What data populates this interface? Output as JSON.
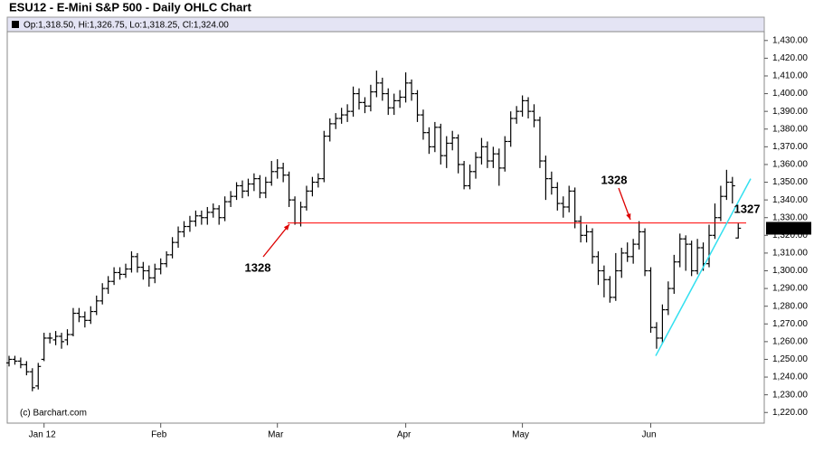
{
  "chart_data": {
    "type": "ohlc",
    "title": "ESU12 - E-Mini S&P 500 - Daily OHLC Chart",
    "info": "Op:1,318.50, Hi:1,326.75, Lo:1,318.25, Cl:1,324.00",
    "credit": "(c) Barchart.com",
    "color": "#000000",
    "categories": [
      null,
      null,
      null,
      null,
      null,
      null,
      "Jan 12",
      null,
      null,
      null,
      null,
      null,
      null,
      null,
      null,
      null,
      null,
      null,
      null,
      null,
      null,
      null,
      null,
      null,
      null,
      null,
      "Feb",
      null,
      null,
      null,
      null,
      null,
      null,
      null,
      null,
      null,
      null,
      null,
      null,
      null,
      null,
      null,
      null,
      null,
      null,
      null,
      "Mar",
      null,
      null,
      null,
      null,
      null,
      null,
      null,
      null,
      null,
      null,
      null,
      null,
      null,
      null,
      null,
      null,
      null,
      null,
      null,
      null,
      null,
      "Apr",
      null,
      null,
      null,
      null,
      null,
      null,
      null,
      null,
      null,
      null,
      null,
      null,
      null,
      null,
      null,
      null,
      null,
      null,
      null,
      "May",
      null,
      null,
      null,
      null,
      null,
      null,
      null,
      null,
      null,
      null,
      null,
      null,
      null,
      null,
      null,
      null,
      null,
      null,
      null,
      null,
      null,
      "Jun",
      null,
      null,
      null,
      null,
      null,
      null,
      null,
      null,
      null,
      null,
      null,
      null,
      null,
      null,
      null
    ],
    "open": [
      1248,
      1250,
      1249,
      1247,
      1243,
      1235,
      1250,
      1262,
      1261,
      1263,
      1261,
      1264,
      1276,
      1274,
      1272,
      1277,
      1283,
      1290,
      1294,
      1299,
      1298,
      1301,
      1308,
      1302,
      1300,
      1296,
      1301,
      1304,
      1309,
      1316,
      1322,
      1325,
      1328,
      1331,
      1330,
      1333,
      1335,
      1330,
      1339,
      1342,
      1348,
      1345,
      1349,
      1352,
      1344,
      1350,
      1356,
      1358,
      1354,
      1340,
      1327,
      1336,
      1345,
      1350,
      1352,
      1376,
      1383,
      1386,
      1388,
      1390,
      1400,
      1395,
      1393,
      1401,
      1406,
      1400,
      1392,
      1396,
      1398,
      1406,
      1400,
      1388,
      1378,
      1370,
      1381,
      1365,
      1372,
      1375,
      1360,
      1348,
      1356,
      1364,
      1370,
      1362,
      1366,
      1358,
      1373,
      1386,
      1390,
      1396,
      1390,
      1385,
      1362,
      1352,
      1347,
      1338,
      1336,
      1345,
      1328,
      1320,
      1322,
      1308,
      1300,
      1295,
      1285,
      1300,
      1310,
      1308,
      1315,
      1322,
      1300,
      1268,
      1262,
      1278,
      1290,
      1305,
      1318,
      1315,
      1300,
      1313,
      1304,
      1320,
      1330,
      1342,
      1350,
      1318.5
    ],
    "high": [
      1252,
      1252,
      1251,
      1249,
      1245,
      1248,
      1265,
      1265,
      1266,
      1265,
      1267,
      1279,
      1279,
      1277,
      1280,
      1286,
      1293,
      1297,
      1302,
      1302,
      1304,
      1311,
      1310,
      1305,
      1303,
      1304,
      1307,
      1311,
      1319,
      1325,
      1328,
      1331,
      1334,
      1334,
      1336,
      1338,
      1337,
      1342,
      1345,
      1350,
      1351,
      1352,
      1355,
      1354,
      1353,
      1362,
      1363,
      1361,
      1356,
      1342,
      1339,
      1348,
      1353,
      1355,
      1379,
      1386,
      1389,
      1392,
      1394,
      1404,
      1403,
      1398,
      1405,
      1413,
      1409,
      1403,
      1400,
      1402,
      1412,
      1408,
      1402,
      1391,
      1381,
      1384,
      1383,
      1376,
      1379,
      1377,
      1362,
      1360,
      1367,
      1375,
      1373,
      1370,
      1369,
      1376,
      1390,
      1393,
      1399,
      1398,
      1394,
      1387,
      1365,
      1356,
      1350,
      1342,
      1348,
      1347,
      1331,
      1326,
      1324,
      1311,
      1303,
      1297,
      1310,
      1313,
      1316,
      1318,
      1328,
      1324,
      1302,
      1271,
      1281,
      1294,
      1309,
      1321,
      1320,
      1317,
      1318,
      1316,
      1326,
      1338,
      1348,
      1357,
      1353,
      1326.75
    ],
    "low": [
      1246,
      1247,
      1245,
      1241,
      1232,
      1233,
      1249,
      1259,
      1258,
      1256,
      1258,
      1263,
      1271,
      1268,
      1270,
      1275,
      1281,
      1287,
      1292,
      1295,
      1296,
      1299,
      1299,
      1295,
      1291,
      1293,
      1298,
      1302,
      1307,
      1313,
      1319,
      1322,
      1325,
      1326,
      1326,
      1330,
      1326,
      1328,
      1336,
      1340,
      1341,
      1342,
      1345,
      1341,
      1341,
      1348,
      1352,
      1350,
      1336,
      1326,
      1325,
      1334,
      1342,
      1347,
      1350,
      1373,
      1380,
      1383,
      1384,
      1387,
      1391,
      1389,
      1390,
      1398,
      1396,
      1388,
      1388,
      1392,
      1395,
      1396,
      1384,
      1374,
      1366,
      1367,
      1360,
      1358,
      1368,
      1355,
      1346,
      1346,
      1352,
      1360,
      1358,
      1358,
      1348,
      1356,
      1370,
      1383,
      1387,
      1386,
      1381,
      1358,
      1340,
      1343,
      1334,
      1330,
      1333,
      1324,
      1316,
      1316,
      1304,
      1292,
      1285,
      1282,
      1283,
      1296,
      1305,
      1304,
      1312,
      1297,
      1265,
      1256,
      1259,
      1275,
      1287,
      1302,
      1300,
      1297,
      1298,
      1300,
      1302,
      1318,
      1328,
      1340,
      1338,
      1318.25
    ],
    "close": [
      1250,
      1249,
      1247,
      1243,
      1234,
      1246,
      1262,
      1262,
      1263,
      1260,
      1264,
      1276,
      1274,
      1272,
      1277,
      1283,
      1290,
      1294,
      1299,
      1298,
      1301,
      1308,
      1302,
      1300,
      1296,
      1301,
      1304,
      1309,
      1316,
      1322,
      1325,
      1328,
      1331,
      1330,
      1333,
      1335,
      1330,
      1339,
      1342,
      1348,
      1345,
      1349,
      1352,
      1344,
      1350,
      1356,
      1358,
      1354,
      1340,
      1327,
      1336,
      1345,
      1350,
      1352,
      1376,
      1383,
      1386,
      1388,
      1390,
      1400,
      1395,
      1393,
      1401,
      1406,
      1400,
      1392,
      1396,
      1398,
      1406,
      1400,
      1388,
      1378,
      1370,
      1381,
      1365,
      1372,
      1375,
      1360,
      1348,
      1356,
      1364,
      1370,
      1362,
      1366,
      1358,
      1373,
      1386,
      1390,
      1396,
      1390,
      1385,
      1362,
      1352,
      1347,
      1338,
      1336,
      1345,
      1328,
      1320,
      1322,
      1308,
      1300,
      1295,
      1285,
      1300,
      1310,
      1308,
      1315,
      1322,
      1300,
      1268,
      1262,
      1278,
      1290,
      1305,
      1318,
      1315,
      1300,
      1313,
      1304,
      1320,
      1330,
      1342,
      1350,
      1348,
      1324
    ],
    "last_price": {
      "value": 1324,
      "label": "1,324.00"
    },
    "hline": {
      "value": 1327,
      "color": "#ff0000"
    },
    "trendline": {
      "values": [
        1252,
        1352
      ],
      "color": "#33e0f0"
    },
    "annotations": [
      {
        "text": "1328",
        "color": "#dd0000"
      },
      {
        "text": "1328",
        "color": "#dd0000"
      },
      {
        "text": "1327",
        "color": "#dd0000"
      }
    ],
    "ylim": [
      1214,
      1435
    ],
    "yticks": [
      {
        "value": 1220,
        "label": "1,220.00"
      },
      {
        "value": 1230,
        "label": "1,230.00"
      },
      {
        "value": 1240,
        "label": "1,240.00"
      },
      {
        "value": 1250,
        "label": "1,250.00"
      },
      {
        "value": 1260,
        "label": "1,260.00"
      },
      {
        "value": 1270,
        "label": "1,270.00"
      },
      {
        "value": 1280,
        "label": "1,280.00"
      },
      {
        "value": 1290,
        "label": "1,290.00"
      },
      {
        "value": 1300,
        "label": "1,300.00"
      },
      {
        "value": 1310,
        "label": "1,310.00"
      },
      {
        "value": 1320,
        "label": "1,320.00"
      },
      {
        "value": 1330,
        "label": "1,330.00"
      },
      {
        "value": 1340,
        "label": "1,340.00"
      },
      {
        "value": 1350,
        "label": "1,350.00"
      },
      {
        "value": 1360,
        "label": "1,360.00"
      },
      {
        "value": 1370,
        "label": "1,370.00"
      },
      {
        "value": 1380,
        "label": "1,380.00"
      },
      {
        "value": 1390,
        "label": "1,390.00"
      },
      {
        "value": 1400,
        "label": "1,400.00"
      },
      {
        "value": 1410,
        "label": "1,410.00"
      },
      {
        "value": 1420,
        "label": "1,420.00"
      },
      {
        "value": 1430,
        "label": "1,430.00"
      }
    ],
    "grid": false
  }
}
